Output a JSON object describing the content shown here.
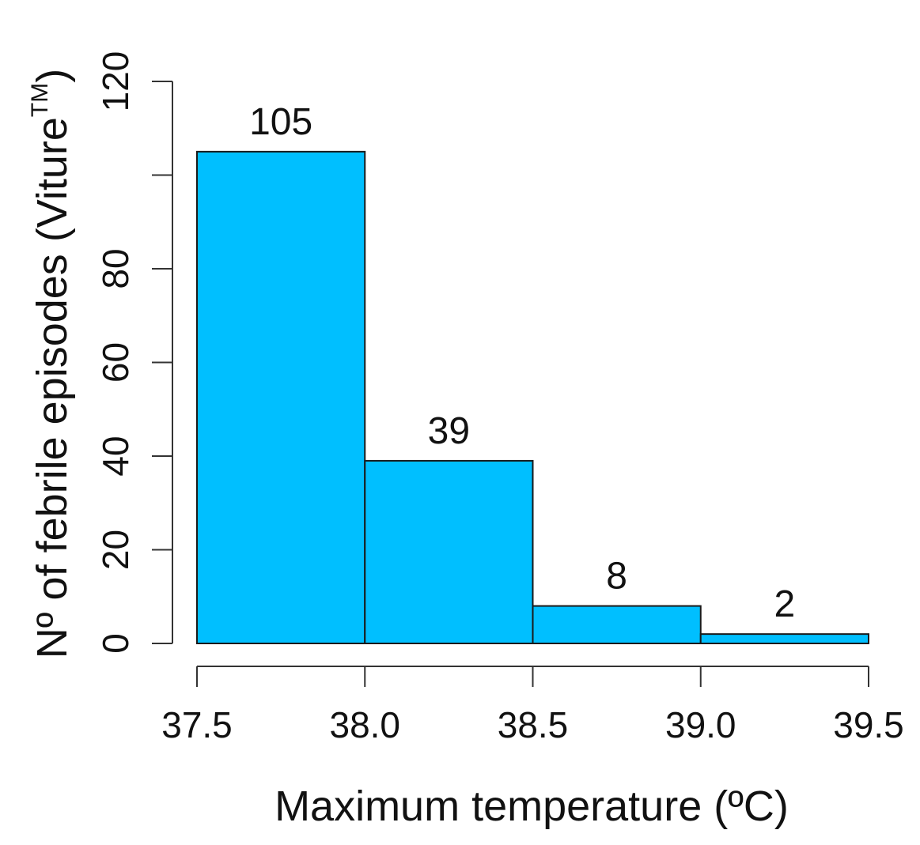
{
  "chart_data": {
    "type": "bar",
    "bins": [
      {
        "start": 37.5,
        "end": 38.0,
        "value": 105
      },
      {
        "start": 38.0,
        "end": 38.5,
        "value": 39
      },
      {
        "start": 38.5,
        "end": 39.0,
        "value": 8
      },
      {
        "start": 39.0,
        "end": 39.5,
        "value": 2
      }
    ],
    "bar_labels": [
      "105",
      "39",
      "8",
      "2"
    ],
    "x_ticks": [
      "37.5",
      "38.0",
      "38.5",
      "39.0",
      "39.5"
    ],
    "y_ticks": [
      "0",
      "20",
      "40",
      "60",
      "80",
      "120"
    ],
    "xlabel": "Maximum temperature (ºC)",
    "ylabel_main": "Nº of febrile episodes (Viture",
    "ylabel_sup": "TM",
    "ylabel_close": ")",
    "xlim": [
      37.5,
      39.5
    ],
    "ylim": [
      0,
      120
    ],
    "grid": false,
    "colors": {
      "bar_fill": "#00bfff",
      "bar_stroke": "#1a1a1a",
      "axis": "#333333"
    }
  }
}
